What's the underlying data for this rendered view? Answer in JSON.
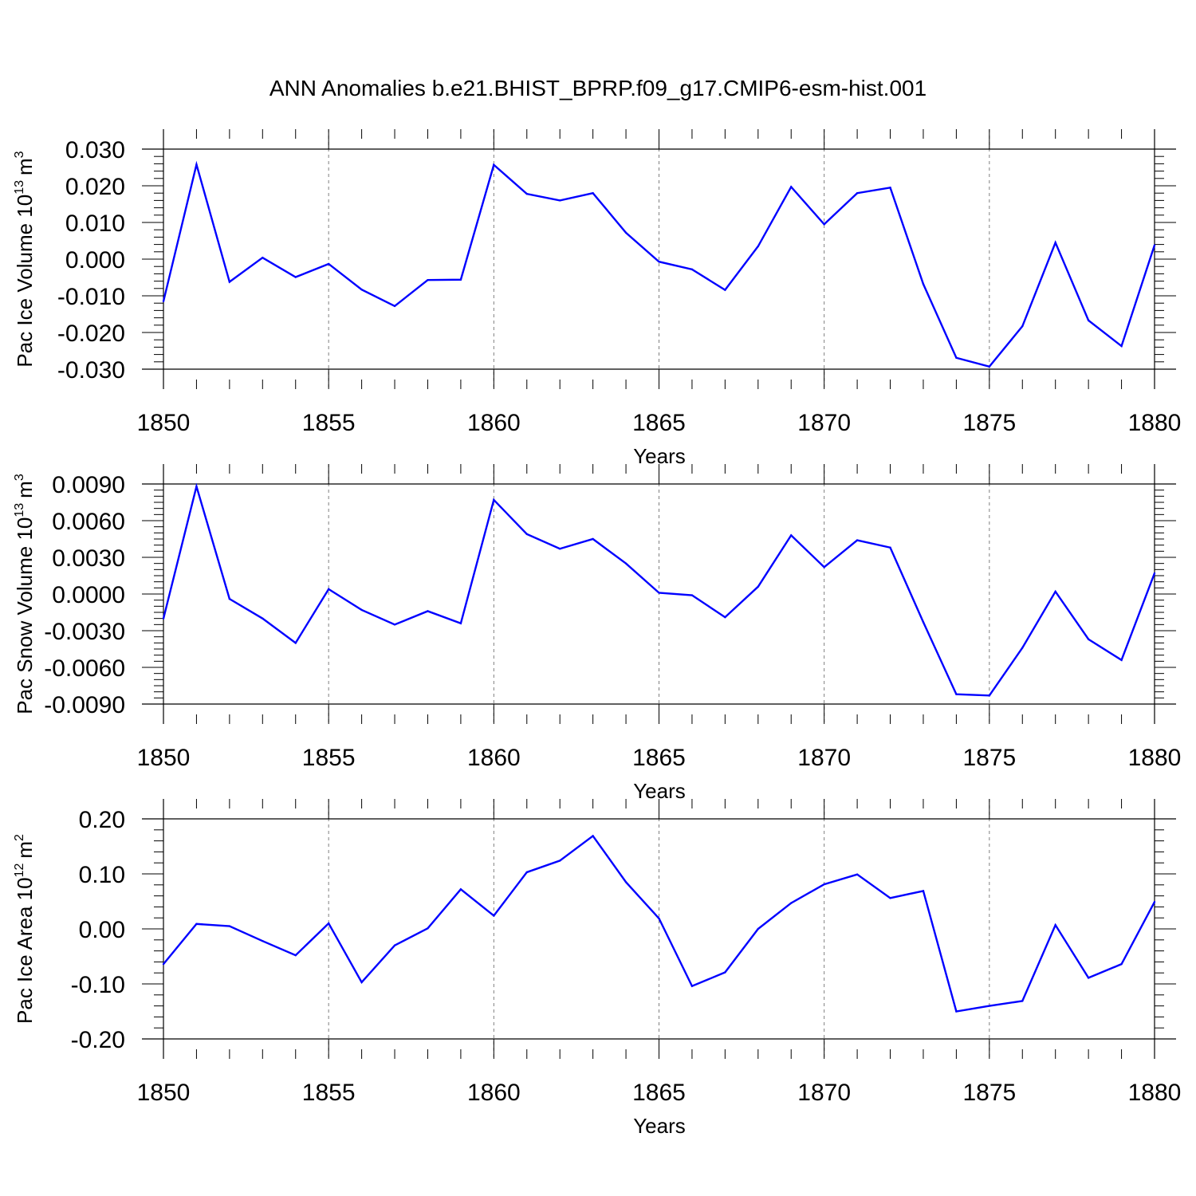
{
  "title": "ANN Anomalies b.e21.BHIST_BPRP.f09_g17.CMIP6-esm-hist.001",
  "colors": {
    "line": "#0000ff",
    "axis": "#000000",
    "grid": "#7f7f7f"
  },
  "chart_data": [
    {
      "type": "line",
      "ylabel": "Pac Ice Volume 10",
      "ylabel_exp": "13",
      "ylabel_unit": "m",
      "ylabel_unit_exp": "3",
      "xlabel": "Years",
      "xlim": [
        1850,
        1880
      ],
      "ylim": [
        -0.03,
        0.03
      ],
      "xticks": [
        "1850",
        "1855",
        "1860",
        "1865",
        "1870",
        "1875",
        "1880"
      ],
      "yticks": [
        "0.030",
        "0.020",
        "0.010",
        "0.000",
        "-0.010",
        "-0.020",
        "-0.030"
      ],
      "ytick_values": [
        0.03,
        0.02,
        0.01,
        0.0,
        -0.01,
        -0.02,
        -0.03
      ],
      "x": [
        1850,
        1851,
        1852,
        1853,
        1854,
        1855,
        1856,
        1857,
        1858,
        1859,
        1860,
        1861,
        1862,
        1863,
        1864,
        1865,
        1866,
        1867,
        1868,
        1869,
        1870,
        1871,
        1872,
        1873,
        1874,
        1875,
        1876,
        1877,
        1878,
        1879,
        1880
      ],
      "values": [
        -0.0115,
        0.0258,
        -0.0062,
        0.0004,
        -0.0049,
        -0.0013,
        -0.0083,
        -0.0128,
        -0.0057,
        -0.0056,
        0.0257,
        0.0178,
        0.016,
        0.018,
        0.0072,
        -0.0007,
        -0.0028,
        -0.0084,
        0.0035,
        0.0197,
        0.0095,
        0.018,
        0.0195,
        -0.0068,
        -0.0269,
        -0.0293,
        -0.0183,
        0.0045,
        -0.0167,
        -0.0237,
        0.0038
      ]
    },
    {
      "type": "line",
      "ylabel": "Pac Snow Volume 10",
      "ylabel_exp": "13",
      "ylabel_unit": "m",
      "ylabel_unit_exp": "3",
      "xlabel": "Years",
      "xlim": [
        1850,
        1880
      ],
      "ylim": [
        -0.009,
        0.009
      ],
      "xticks": [
        "1850",
        "1855",
        "1860",
        "1865",
        "1870",
        "1875",
        "1880"
      ],
      "yticks": [
        "0.0090",
        "0.0060",
        "0.0030",
        "0.0000",
        "-0.0030",
        "-0.0060",
        "-0.0090"
      ],
      "ytick_values": [
        0.009,
        0.006,
        0.003,
        0.0,
        -0.003,
        -0.006,
        -0.009
      ],
      "x": [
        1850,
        1851,
        1852,
        1853,
        1854,
        1855,
        1856,
        1857,
        1858,
        1859,
        1860,
        1861,
        1862,
        1863,
        1864,
        1865,
        1866,
        1867,
        1868,
        1869,
        1870,
        1871,
        1872,
        1873,
        1874,
        1875,
        1876,
        1877,
        1878,
        1879,
        1880
      ],
      "values": [
        -0.002,
        0.0088,
        -0.0004,
        -0.002,
        -0.004,
        0.0004,
        -0.0013,
        -0.0025,
        -0.0014,
        -0.0024,
        0.0077,
        0.0049,
        0.0037,
        0.0045,
        0.0025,
        0.0001,
        -0.0001,
        -0.0019,
        0.0006,
        0.0048,
        0.0022,
        0.0044,
        0.0038,
        -0.0023,
        -0.0082,
        -0.0083,
        -0.0044,
        0.0002,
        -0.0037,
        -0.0054,
        0.0017
      ]
    },
    {
      "type": "line",
      "ylabel": "Pac Ice Area 10",
      "ylabel_exp": "12",
      "ylabel_unit": "m",
      "ylabel_unit_exp": "2",
      "xlabel": "Years",
      "xlim": [
        1850,
        1880
      ],
      "ylim": [
        -0.2,
        0.2
      ],
      "xticks": [
        "1850",
        "1855",
        "1860",
        "1865",
        "1870",
        "1875",
        "1880"
      ],
      "yticks": [
        "0.20",
        "0.10",
        "0.00",
        "-0.10",
        "-0.20"
      ],
      "ytick_values": [
        0.2,
        0.1,
        0.0,
        -0.1,
        -0.2
      ],
      "x": [
        1850,
        1851,
        1852,
        1853,
        1854,
        1855,
        1856,
        1857,
        1858,
        1859,
        1860,
        1861,
        1862,
        1863,
        1864,
        1865,
        1866,
        1867,
        1868,
        1869,
        1870,
        1871,
        1872,
        1873,
        1874,
        1875,
        1876,
        1877,
        1878,
        1879,
        1880
      ],
      "values": [
        -0.064,
        0.009,
        0.005,
        -0.022,
        -0.048,
        0.01,
        -0.097,
        -0.03,
        0.001,
        0.072,
        0.024,
        0.103,
        0.124,
        0.169,
        0.085,
        0.019,
        -0.104,
        -0.079,
        0.0,
        0.047,
        0.081,
        0.099,
        0.056,
        0.069,
        -0.15,
        -0.14,
        -0.131,
        0.007,
        -0.089,
        -0.064,
        0.049
      ]
    }
  ]
}
